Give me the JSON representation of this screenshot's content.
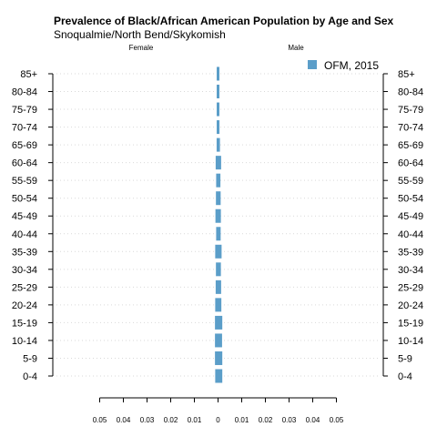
{
  "chart_data": {
    "type": "bar",
    "orientation": "horizontal-pyramid",
    "title": "Prevalence of Black/African American Population by Age and Sex",
    "subtitle": "Snoqualmie/North Bend/Skykomish",
    "left_label": "Female",
    "right_label": "Male",
    "categories": [
      "0-4",
      "5-9",
      "10-14",
      "15-19",
      "20-24",
      "25-29",
      "30-34",
      "35-39",
      "40-44",
      "45-49",
      "50-54",
      "55-59",
      "60-64",
      "65-69",
      "70-74",
      "75-79",
      "80-84",
      "85+"
    ],
    "series": [
      {
        "name": "OFM, 2015",
        "color": "#5b9ec9",
        "female": [
          0.0012,
          0.0013,
          0.0013,
          0.0013,
          0.0012,
          0.001,
          0.0009,
          0.0012,
          0.0008,
          0.0011,
          0.0009,
          0.0008,
          0.001,
          0.0006,
          0.0004,
          0.0003,
          0.0002,
          0.0002
        ],
        "male": [
          0.0018,
          0.0018,
          0.0017,
          0.0018,
          0.0014,
          0.0013,
          0.0012,
          0.0015,
          0.0011,
          0.0012,
          0.0011,
          0.001,
          0.0013,
          0.0008,
          0.0006,
          0.0005,
          0.0004,
          0.0003
        ]
      }
    ],
    "xlim": [
      -0.05,
      0.05
    ],
    "xticks": [
      "0.05",
      "0.04",
      "0.03",
      "0.02",
      "0.01",
      "0",
      "0.01",
      "0.02",
      "0.03",
      "0.04",
      "0.05"
    ],
    "grid": true,
    "legend": "top-right"
  }
}
